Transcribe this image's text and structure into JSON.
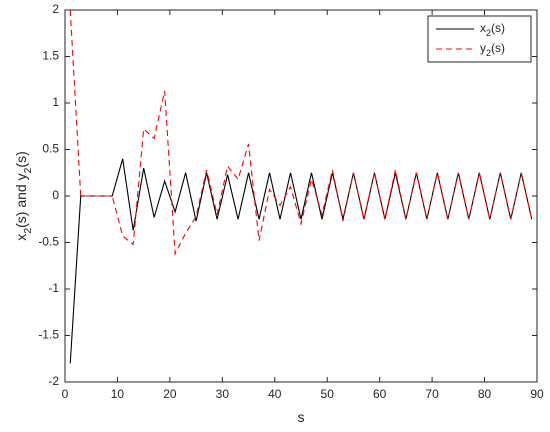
{
  "chart_data": {
    "type": "line",
    "xlabel": "s",
    "ylabel": "x2(s) and y2(s)",
    "x": [
      1,
      3,
      5,
      7,
      9,
      11,
      13,
      15,
      17,
      19,
      21,
      23,
      25,
      27,
      29,
      31,
      33,
      35,
      37,
      39,
      41,
      43,
      45,
      47,
      49,
      51,
      53,
      55,
      57,
      59,
      61,
      63,
      65,
      67,
      69,
      71,
      73,
      75,
      77,
      79,
      81,
      83,
      85,
      87,
      89
    ],
    "series": [
      {
        "name": "x2(s)",
        "color": "#000000",
        "dash": "solid",
        "values": [
          -1.8,
          0,
          0,
          0,
          0,
          0.4,
          -0.37,
          0.3,
          -0.23,
          0.16,
          -0.17,
          0.25,
          -0.27,
          0.25,
          -0.25,
          0.23,
          -0.25,
          0.25,
          -0.25,
          0.25,
          -0.25,
          0.25,
          -0.25,
          0.25,
          -0.25,
          0.25,
          -0.25,
          0.25,
          -0.25,
          0.25,
          -0.25,
          0.25,
          -0.25,
          0.25,
          -0.25,
          0.25,
          -0.25,
          0.25,
          -0.25,
          0.25,
          -0.25,
          0.25,
          -0.25,
          0.25,
          -0.25
        ]
      },
      {
        "name": "y2(s)",
        "color": "#ff0000",
        "dash": "dashed",
        "values": [
          2,
          0,
          0,
          0,
          0,
          -0.43,
          -0.52,
          0.72,
          0.62,
          1.13,
          -0.62,
          -0.4,
          -0.22,
          0.28,
          -0.2,
          0.32,
          0.18,
          0.56,
          -0.48,
          0.07,
          -0.1,
          0.1,
          -0.3,
          0.18,
          -0.2,
          0.28,
          -0.27,
          0.25,
          -0.25,
          0.25,
          -0.25,
          0.28,
          -0.25,
          0.25,
          -0.25,
          0.25,
          -0.25,
          0.25,
          -0.25,
          0.25,
          -0.25,
          0.25,
          -0.25,
          0.25,
          -0.25
        ]
      }
    ],
    "xlim": [
      0,
      90
    ],
    "xticks": [
      0,
      10,
      20,
      30,
      40,
      50,
      60,
      70,
      80,
      90
    ],
    "ylim": [
      -2,
      2
    ],
    "yticks": [
      -2,
      -1.5,
      -1,
      -0.5,
      0,
      0.5,
      1,
      1.5,
      2
    ],
    "grid": false,
    "legend": "northeast"
  }
}
